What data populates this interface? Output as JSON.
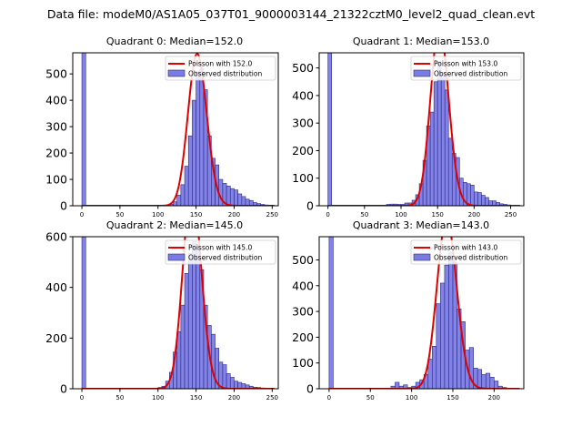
{
  "chart_data": {
    "type": "bar",
    "title": "Data file: modeM0/AS1A05_037T01_9000003144_21322cztM0_level2_quad_clean.evt",
    "bin_width": 5,
    "colors": {
      "bar_fill": "#7b7be6",
      "bar_edge": "#2a2a80",
      "poisson": "#e00000"
    },
    "legend": {
      "placement": "top-right",
      "observed_label": "Observed distribution"
    },
    "panels": [
      {
        "title": "Quadrant 0: Median=152.0",
        "poisson_label": "Poisson with 152.0",
        "mean": 152,
        "xlim": [
          -12,
          258
        ],
        "ylim": [
          0,
          580
        ],
        "xticks": [
          0,
          50,
          100,
          150,
          200,
          250
        ],
        "yticks": [
          0,
          100,
          200,
          300,
          400,
          500
        ],
        "bins": [
          0,
          5,
          115,
          120,
          125,
          130,
          135,
          140,
          145,
          150,
          155,
          160,
          165,
          170,
          175,
          180,
          185,
          190,
          195,
          200,
          205,
          210,
          215,
          220,
          225,
          230,
          235,
          240
        ],
        "counts": [
          580,
          0,
          6,
          15,
          40,
          80,
          150,
          265,
          400,
          510,
          520,
          440,
          265,
          180,
          155,
          100,
          85,
          75,
          65,
          60,
          45,
          35,
          25,
          20,
          12,
          8,
          5,
          3
        ]
      },
      {
        "title": "Quadrant 1: Median=153.0",
        "poisson_label": "Poisson with 153.0",
        "mean": 153,
        "xlim": [
          -12,
          268
        ],
        "ylim": [
          0,
          555
        ],
        "xticks": [
          0,
          50,
          100,
          150,
          200,
          250
        ],
        "yticks": [
          0,
          100,
          200,
          300,
          400,
          500
        ],
        "bins": [
          0,
          5,
          80,
          85,
          90,
          95,
          100,
          105,
          110,
          115,
          120,
          125,
          130,
          135,
          140,
          145,
          150,
          155,
          160,
          165,
          170,
          175,
          180,
          185,
          190,
          195,
          200,
          205,
          210,
          215,
          220,
          225,
          230,
          235,
          240,
          245
        ],
        "counts": [
          555,
          0,
          5,
          6,
          6,
          5,
          5,
          10,
          10,
          20,
          40,
          80,
          165,
          290,
          340,
          450,
          525,
          480,
          420,
          245,
          190,
          175,
          100,
          85,
          80,
          75,
          50,
          48,
          38,
          30,
          18,
          18,
          12,
          7,
          5,
          3
        ]
      },
      {
        "title": "Quadrant 2: Median=145.0",
        "poisson_label": "Poisson with 145.0",
        "mean": 145,
        "xlim": [
          -12,
          258
        ],
        "ylim": [
          0,
          600
        ],
        "xticks": [
          0,
          50,
          100,
          150,
          200,
          250
        ],
        "yticks": [
          0,
          200,
          400,
          600
        ],
        "bins": [
          0,
          5,
          100,
          105,
          110,
          115,
          120,
          125,
          130,
          135,
          140,
          145,
          150,
          155,
          160,
          165,
          170,
          175,
          180,
          185,
          190,
          195,
          200,
          205,
          210,
          215,
          220,
          225,
          230,
          235
        ],
        "counts": [
          600,
          0,
          5,
          10,
          30,
          65,
          145,
          225,
          330,
          455,
          535,
          580,
          555,
          470,
          330,
          250,
          215,
          160,
          105,
          95,
          60,
          45,
          30,
          25,
          20,
          15,
          10,
          6,
          5,
          3
        ]
      },
      {
        "title": "Quadrant 3: Median=143.0",
        "poisson_label": "Poisson with 143.0",
        "mean": 143,
        "xlim": [
          -12,
          236
        ],
        "ylim": [
          0,
          590
        ],
        "xticks": [
          0,
          50,
          100,
          150,
          200
        ],
        "yticks": [
          0,
          100,
          200,
          300,
          400,
          500
        ],
        "bins": [
          0,
          5,
          75,
          80,
          85,
          90,
          95,
          100,
          105,
          110,
          115,
          120,
          125,
          130,
          135,
          140,
          145,
          150,
          155,
          160,
          165,
          170,
          175,
          180,
          185,
          190,
          195,
          200,
          205,
          210
        ],
        "counts": [
          590,
          0,
          10,
          25,
          10,
          15,
          5,
          10,
          25,
          35,
          55,
          115,
          165,
          330,
          410,
          480,
          530,
          490,
          310,
          260,
          150,
          160,
          80,
          75,
          55,
          60,
          45,
          30,
          10,
          5
        ]
      }
    ]
  }
}
